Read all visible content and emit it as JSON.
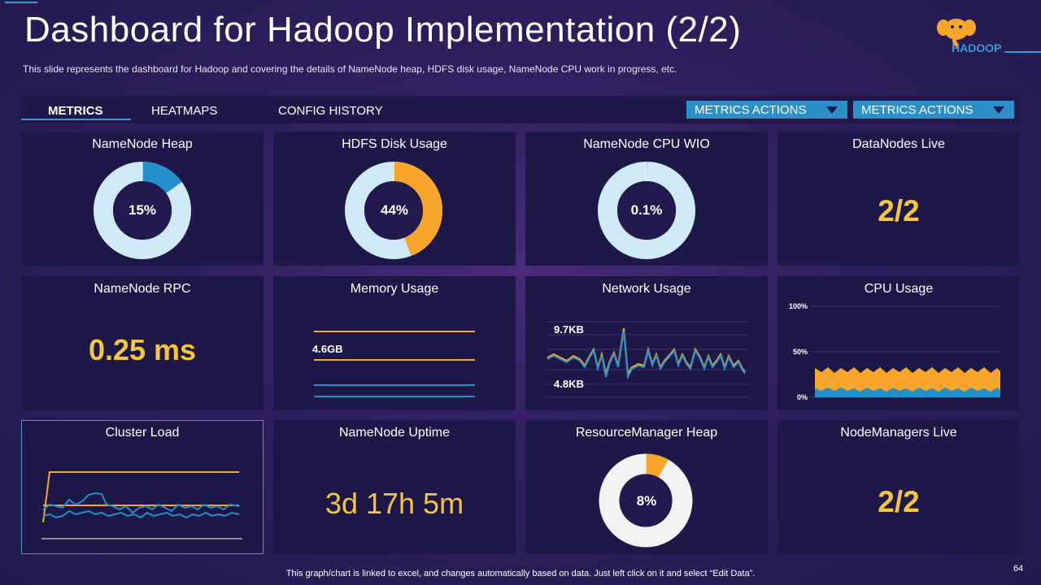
{
  "header": {
    "title": "Dashboard for Hadoop Implementation (2/2)",
    "subtitle": "This slide represents the dashboard for Hadoop and covering the details of NameNode heap, HDFS disk usage, NameNode  CPU work in progress, etc.",
    "logo_text": "HADOOP"
  },
  "tabs": [
    {
      "label": "METRICS",
      "active": true
    },
    {
      "label": "HEATMAPS",
      "active": false
    },
    {
      "label": "CONFIG HISTORY",
      "active": false
    }
  ],
  "actions": [
    {
      "label": "METRICS ACTIONS"
    },
    {
      "label": "METRICS ACTIONS"
    }
  ],
  "widgets": {
    "namenode_heap": {
      "title": "NameNode Heap",
      "label": "15%",
      "percent": 15
    },
    "hdfs_disk": {
      "title": "HDFS Disk Usage",
      "label": "44%",
      "percent": 44
    },
    "namenode_cpu": {
      "title": "NameNode CPU WIO",
      "label": "0.1%",
      "percent": 0.1
    },
    "datanodes_live": {
      "title": "DataNodes Live",
      "value": "2/2"
    },
    "namenode_rpc": {
      "title": "NameNode RPC",
      "value": "0.25 ms"
    },
    "memory_usage": {
      "title": "Memory Usage",
      "label": "4.6GB"
    },
    "network_usage": {
      "title": "Network Usage",
      "label_high": "9.7KB",
      "label_low": "4.8KB"
    },
    "cpu_usage": {
      "title": "CPU Usage",
      "ticks": [
        "100%",
        "50%",
        "0%"
      ]
    },
    "cluster_load": {
      "title": "Cluster Load"
    },
    "namenode_uptime": {
      "title": "NameNode Uptime",
      "value": "3d 17h 5m"
    },
    "rm_heap": {
      "title": "ResourceManager Heap",
      "label": "8%",
      "percent": 8
    },
    "nodemanagers_live": {
      "title": "NodeManagers Live",
      "value": "2/2"
    }
  },
  "colors": {
    "accent": "#3a9ad9",
    "orange": "#f8a52b",
    "donut_light": "#cfe9f7",
    "donut_blue": "#2290c9",
    "donut_gray": "#f2f2f2",
    "value_yellow": "#f5c53a"
  },
  "footer": {
    "note": "This graph/chart is linked to excel,  and changes automatically based on data. Just left click on it and select “Edit Data”.",
    "page": "64"
  }
}
